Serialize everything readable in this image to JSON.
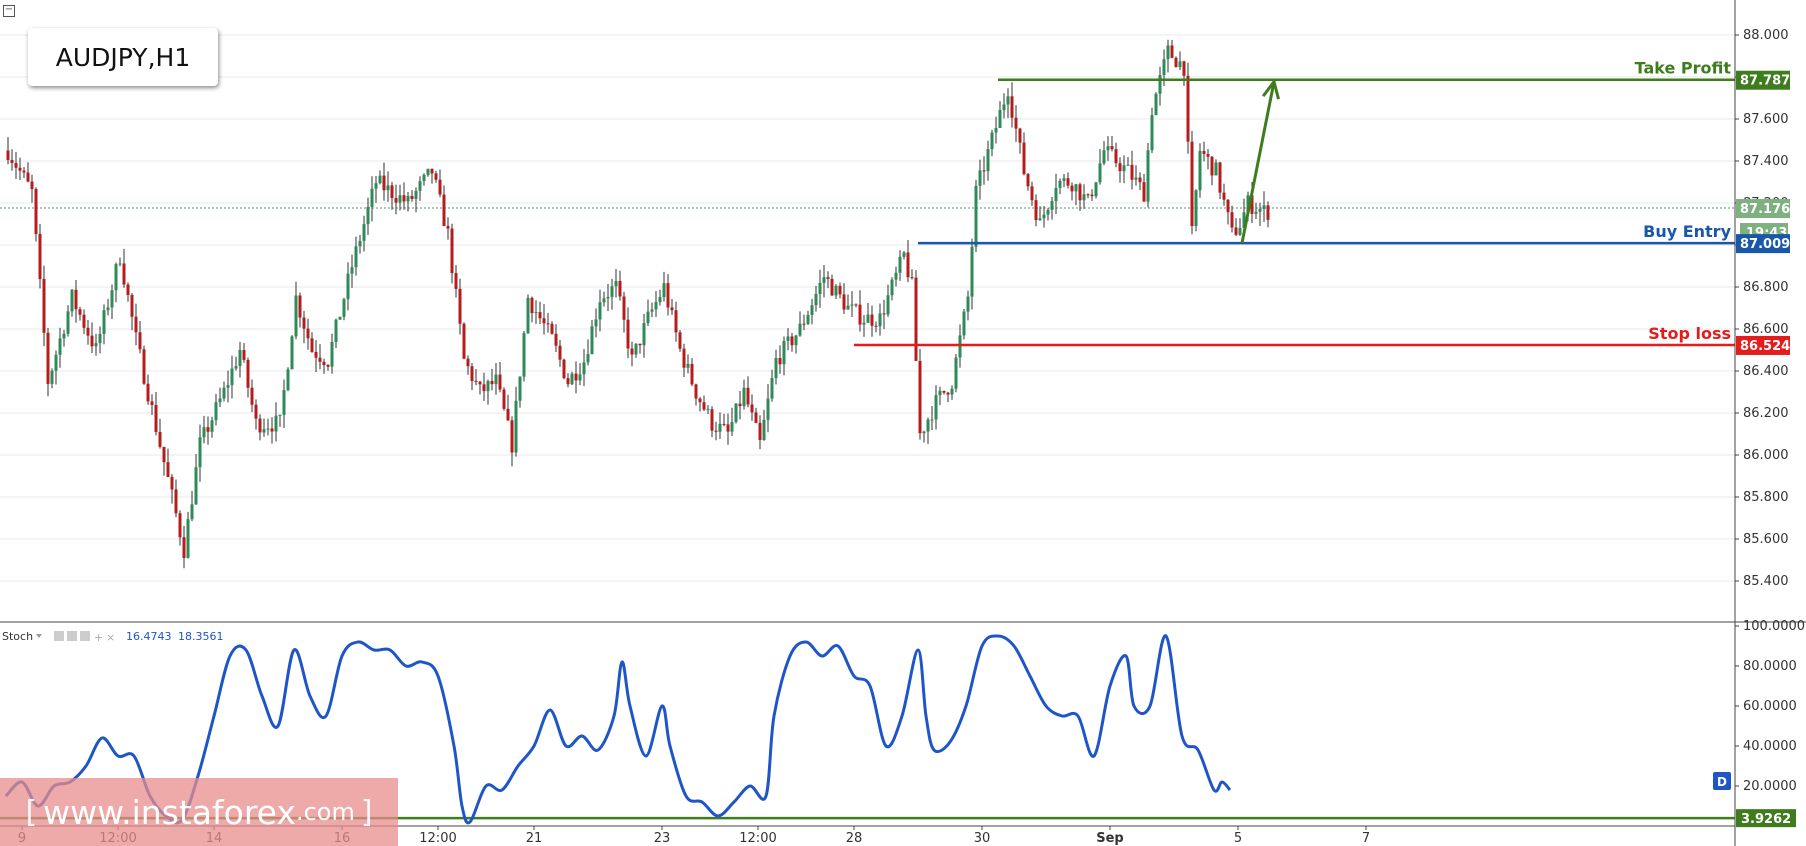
{
  "symbol": "AUDJPY,H1",
  "watermark": {
    "bracket_open": "[",
    "text": "www.instaforex",
    "suffix": ".com",
    "bracket_close": "]"
  },
  "indicator": {
    "name": "Stoch",
    "k_value": "16.4743",
    "d_value": "18.3561",
    "level_value": "3.9262",
    "badge": "D"
  },
  "levels": {
    "take_profit": {
      "label": "Take Profit",
      "value": "87.787",
      "price": 87.787,
      "color": "#3e7c1e"
    },
    "buy_entry": {
      "label": "Buy Entry",
      "value": "87.009",
      "price": 87.009,
      "color": "#1a57a8"
    },
    "stop_loss": {
      "label": "Stop loss",
      "value": "86.524",
      "price": 86.524,
      "color": "#e51c1c"
    },
    "current": {
      "value": "87.176",
      "price": 87.176,
      "countdown": "19:43",
      "color": "#6aa84f"
    }
  },
  "colors": {
    "up": "#2e8b57",
    "down": "#b71c1c",
    "wick": "#333333",
    "stoch_line": "#1e56c8",
    "level_line": "#3e7c1e",
    "grid": "#e8e8e8"
  },
  "chart_data": {
    "type": "candlestick",
    "title": "AUDJPY,H1",
    "ylim": [
      85.3,
      88.1
    ],
    "y_ticks": [
      "88.000",
      "87.800",
      "87.600",
      "87.400",
      "87.200",
      "87.000",
      "86.800",
      "86.600",
      "86.400",
      "86.200",
      "86.000",
      "85.800",
      "85.600",
      "85.400"
    ],
    "y_tick_values": [
      88.0,
      87.8,
      87.6,
      87.4,
      87.2,
      87.0,
      86.8,
      86.6,
      86.4,
      86.2,
      86.0,
      85.8,
      85.6,
      85.4
    ],
    "x_labels": [
      {
        "text": "9",
        "bar": 2,
        "bold": false
      },
      {
        "text": "12:00",
        "bar": 14,
        "bold": false
      },
      {
        "text": "14",
        "bar": 26,
        "bold": false
      },
      {
        "text": "16",
        "bar": 42,
        "bold": false
      },
      {
        "text": "12:00",
        "bar": 54,
        "bold": false
      },
      {
        "text": "21",
        "bar": 66,
        "bold": false
      },
      {
        "text": "23",
        "bar": 82,
        "bold": false
      },
      {
        "text": "12:00",
        "bar": 94,
        "bold": false
      },
      {
        "text": "28",
        "bar": 106,
        "bold": false
      },
      {
        "text": "30",
        "bar": 122,
        "bold": false
      },
      {
        "text": "Sep",
        "bar": 138,
        "bold": true
      },
      {
        "text": "5",
        "bar": 154,
        "bold": false
      },
      {
        "text": "7",
        "bar": 170,
        "bold": false
      }
    ],
    "bars_visible": 182,
    "anchors": [
      [
        0,
        87.45
      ],
      [
        3,
        87.25
      ],
      [
        5,
        86.35
      ],
      [
        8,
        86.75
      ],
      [
        11,
        86.5
      ],
      [
        14,
        86.95
      ],
      [
        16,
        86.55
      ],
      [
        19,
        86.05
      ],
      [
        22,
        85.55
      ],
      [
        24,
        86.05
      ],
      [
        27,
        86.3
      ],
      [
        29,
        86.5
      ],
      [
        31,
        86.15
      ],
      [
        34,
        86.15
      ],
      [
        36,
        86.75
      ],
      [
        38,
        86.5
      ],
      [
        40,
        86.45
      ],
      [
        43,
        86.9
      ],
      [
        46,
        87.3
      ],
      [
        50,
        87.2
      ],
      [
        53,
        87.35
      ],
      [
        55,
        87.05
      ],
      [
        57,
        86.45
      ],
      [
        59,
        86.3
      ],
      [
        61,
        86.35
      ],
      [
        63,
        86.05
      ],
      [
        65,
        86.75
      ],
      [
        68,
        86.55
      ],
      [
        70,
        86.35
      ],
      [
        72,
        86.45
      ],
      [
        74,
        86.75
      ],
      [
        76,
        86.8
      ],
      [
        78,
        86.45
      ],
      [
        80,
        86.65
      ],
      [
        82,
        86.8
      ],
      [
        84,
        86.5
      ],
      [
        86,
        86.3
      ],
      [
        88,
        86.15
      ],
      [
        90,
        86.1
      ],
      [
        92,
        86.3
      ],
      [
        94,
        86.05
      ],
      [
        96,
        86.45
      ],
      [
        99,
        86.6
      ],
      [
        102,
        86.85
      ],
      [
        105,
        86.7
      ],
      [
        107,
        86.65
      ],
      [
        109,
        86.65
      ],
      [
        112,
        86.95
      ],
      [
        113,
        86.8
      ],
      [
        114,
        86.1
      ],
      [
        116,
        86.25
      ],
      [
        118,
        86.35
      ],
      [
        120,
        86.75
      ],
      [
        121,
        87.25
      ],
      [
        123,
        87.5
      ],
      [
        125,
        87.75
      ],
      [
        127,
        87.35
      ],
      [
        129,
        87.1
      ],
      [
        131,
        87.3
      ],
      [
        133,
        87.3
      ],
      [
        135,
        87.2
      ],
      [
        137,
        87.45
      ],
      [
        140,
        87.35
      ],
      [
        142,
        87.25
      ],
      [
        143,
        87.65
      ],
      [
        145,
        87.92
      ],
      [
        147,
        87.85
      ],
      [
        148,
        87.05
      ],
      [
        149,
        87.45
      ],
      [
        151,
        87.35
      ],
      [
        153,
        87.05
      ],
      [
        154,
        87.1
      ],
      [
        155,
        87.2
      ],
      [
        157,
        87.16
      ]
    ]
  },
  "stoch_data": {
    "ylim": [
      0,
      100
    ],
    "y_ticks": [
      "100.0000",
      "80.0000",
      "60.0000",
      "40.0000",
      "20.0000"
    ],
    "y_tick_values": [
      100,
      80,
      60,
      40,
      20
    ],
    "level": 3.9262,
    "anchors": [
      [
        0,
        15
      ],
      [
        2,
        22
      ],
      [
        4,
        10
      ],
      [
        6,
        20
      ],
      [
        8,
        22
      ],
      [
        10,
        30
      ],
      [
        12,
        44
      ],
      [
        14,
        35
      ],
      [
        16,
        35
      ],
      [
        18,
        15
      ],
      [
        20,
        5
      ],
      [
        22,
        3
      ],
      [
        24,
        25
      ],
      [
        26,
        55
      ],
      [
        28,
        85
      ],
      [
        30,
        88
      ],
      [
        32,
        65
      ],
      [
        34,
        50
      ],
      [
        36,
        88
      ],
      [
        38,
        65
      ],
      [
        40,
        55
      ],
      [
        42,
        85
      ],
      [
        44,
        92
      ],
      [
        46,
        88
      ],
      [
        48,
        88
      ],
      [
        50,
        80
      ],
      [
        52,
        82
      ],
      [
        54,
        75
      ],
      [
        56,
        40
      ],
      [
        57,
        10
      ],
      [
        58,
        2
      ],
      [
        60,
        20
      ],
      [
        62,
        18
      ],
      [
        64,
        30
      ],
      [
        66,
        40
      ],
      [
        68,
        58
      ],
      [
        70,
        40
      ],
      [
        72,
        45
      ],
      [
        74,
        38
      ],
      [
        76,
        55
      ],
      [
        77,
        82
      ],
      [
        78,
        60
      ],
      [
        80,
        35
      ],
      [
        82,
        60
      ],
      [
        83,
        40
      ],
      [
        85,
        15
      ],
      [
        87,
        12
      ],
      [
        89,
        5
      ],
      [
        91,
        12
      ],
      [
        93,
        20
      ],
      [
        95,
        15
      ],
      [
        96,
        55
      ],
      [
        98,
        85
      ],
      [
        100,
        92
      ],
      [
        102,
        85
      ],
      [
        104,
        90
      ],
      [
        106,
        75
      ],
      [
        108,
        70
      ],
      [
        110,
        40
      ],
      [
        112,
        55
      ],
      [
        114,
        88
      ],
      [
        115,
        55
      ],
      [
        116,
        38
      ],
      [
        118,
        42
      ],
      [
        120,
        60
      ],
      [
        122,
        90
      ],
      [
        124,
        95
      ],
      [
        126,
        90
      ],
      [
        128,
        75
      ],
      [
        130,
        60
      ],
      [
        132,
        55
      ],
      [
        134,
        55
      ],
      [
        136,
        35
      ],
      [
        138,
        70
      ],
      [
        140,
        85
      ],
      [
        141,
        60
      ],
      [
        143,
        60
      ],
      [
        145,
        95
      ],
      [
        147,
        45
      ],
      [
        149,
        38
      ],
      [
        151,
        18
      ],
      [
        152,
        22
      ],
      [
        153,
        18
      ]
    ]
  }
}
